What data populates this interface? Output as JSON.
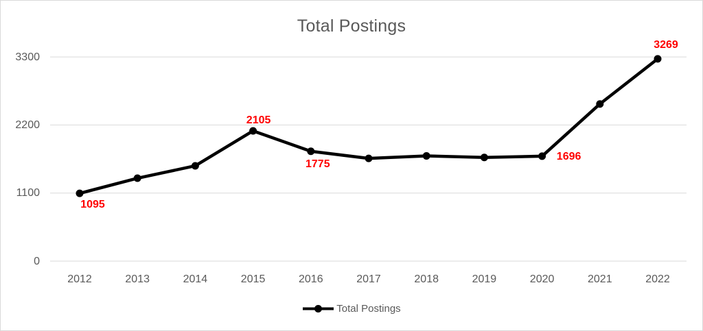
{
  "chart_data": {
    "type": "line",
    "title": "Total Postings",
    "categories": [
      "2012",
      "2013",
      "2014",
      "2015",
      "2016",
      "2017",
      "2018",
      "2019",
      "2020",
      "2021",
      "2022"
    ],
    "series": [
      {
        "name": "Total Postings",
        "values": [
          1095,
          1340,
          1540,
          2105,
          1775,
          1660,
          1700,
          1675,
          1696,
          2540,
          3269
        ]
      }
    ],
    "data_labels": [
      {
        "category": "2012",
        "value": "1095",
        "position": "below"
      },
      {
        "category": "2015",
        "value": "2105",
        "position": "above"
      },
      {
        "category": "2016",
        "value": "1775",
        "position": "below"
      },
      {
        "category": "2020",
        "value": "1696",
        "position": "right"
      },
      {
        "category": "2022",
        "value": "3269",
        "position": "above"
      }
    ],
    "y_axis": {
      "tick_labels": [
        "0",
        "1100",
        "2200",
        "3300"
      ],
      "min": 0,
      "max": 3300
    },
    "x_axis": {
      "tick_labels": [
        "2012",
        "2013",
        "2014",
        "2015",
        "2016",
        "2017",
        "2018",
        "2019",
        "2020",
        "2021",
        "2022"
      ]
    },
    "legend": {
      "label": "Total Postings",
      "position": "bottom"
    },
    "grid": true,
    "colors": {
      "series_line": "#000000",
      "marker": "#000000",
      "data_label": "#ff0000",
      "axis_text": "#595959",
      "title_text": "#595959",
      "gridline": "#d9d9d9"
    }
  }
}
